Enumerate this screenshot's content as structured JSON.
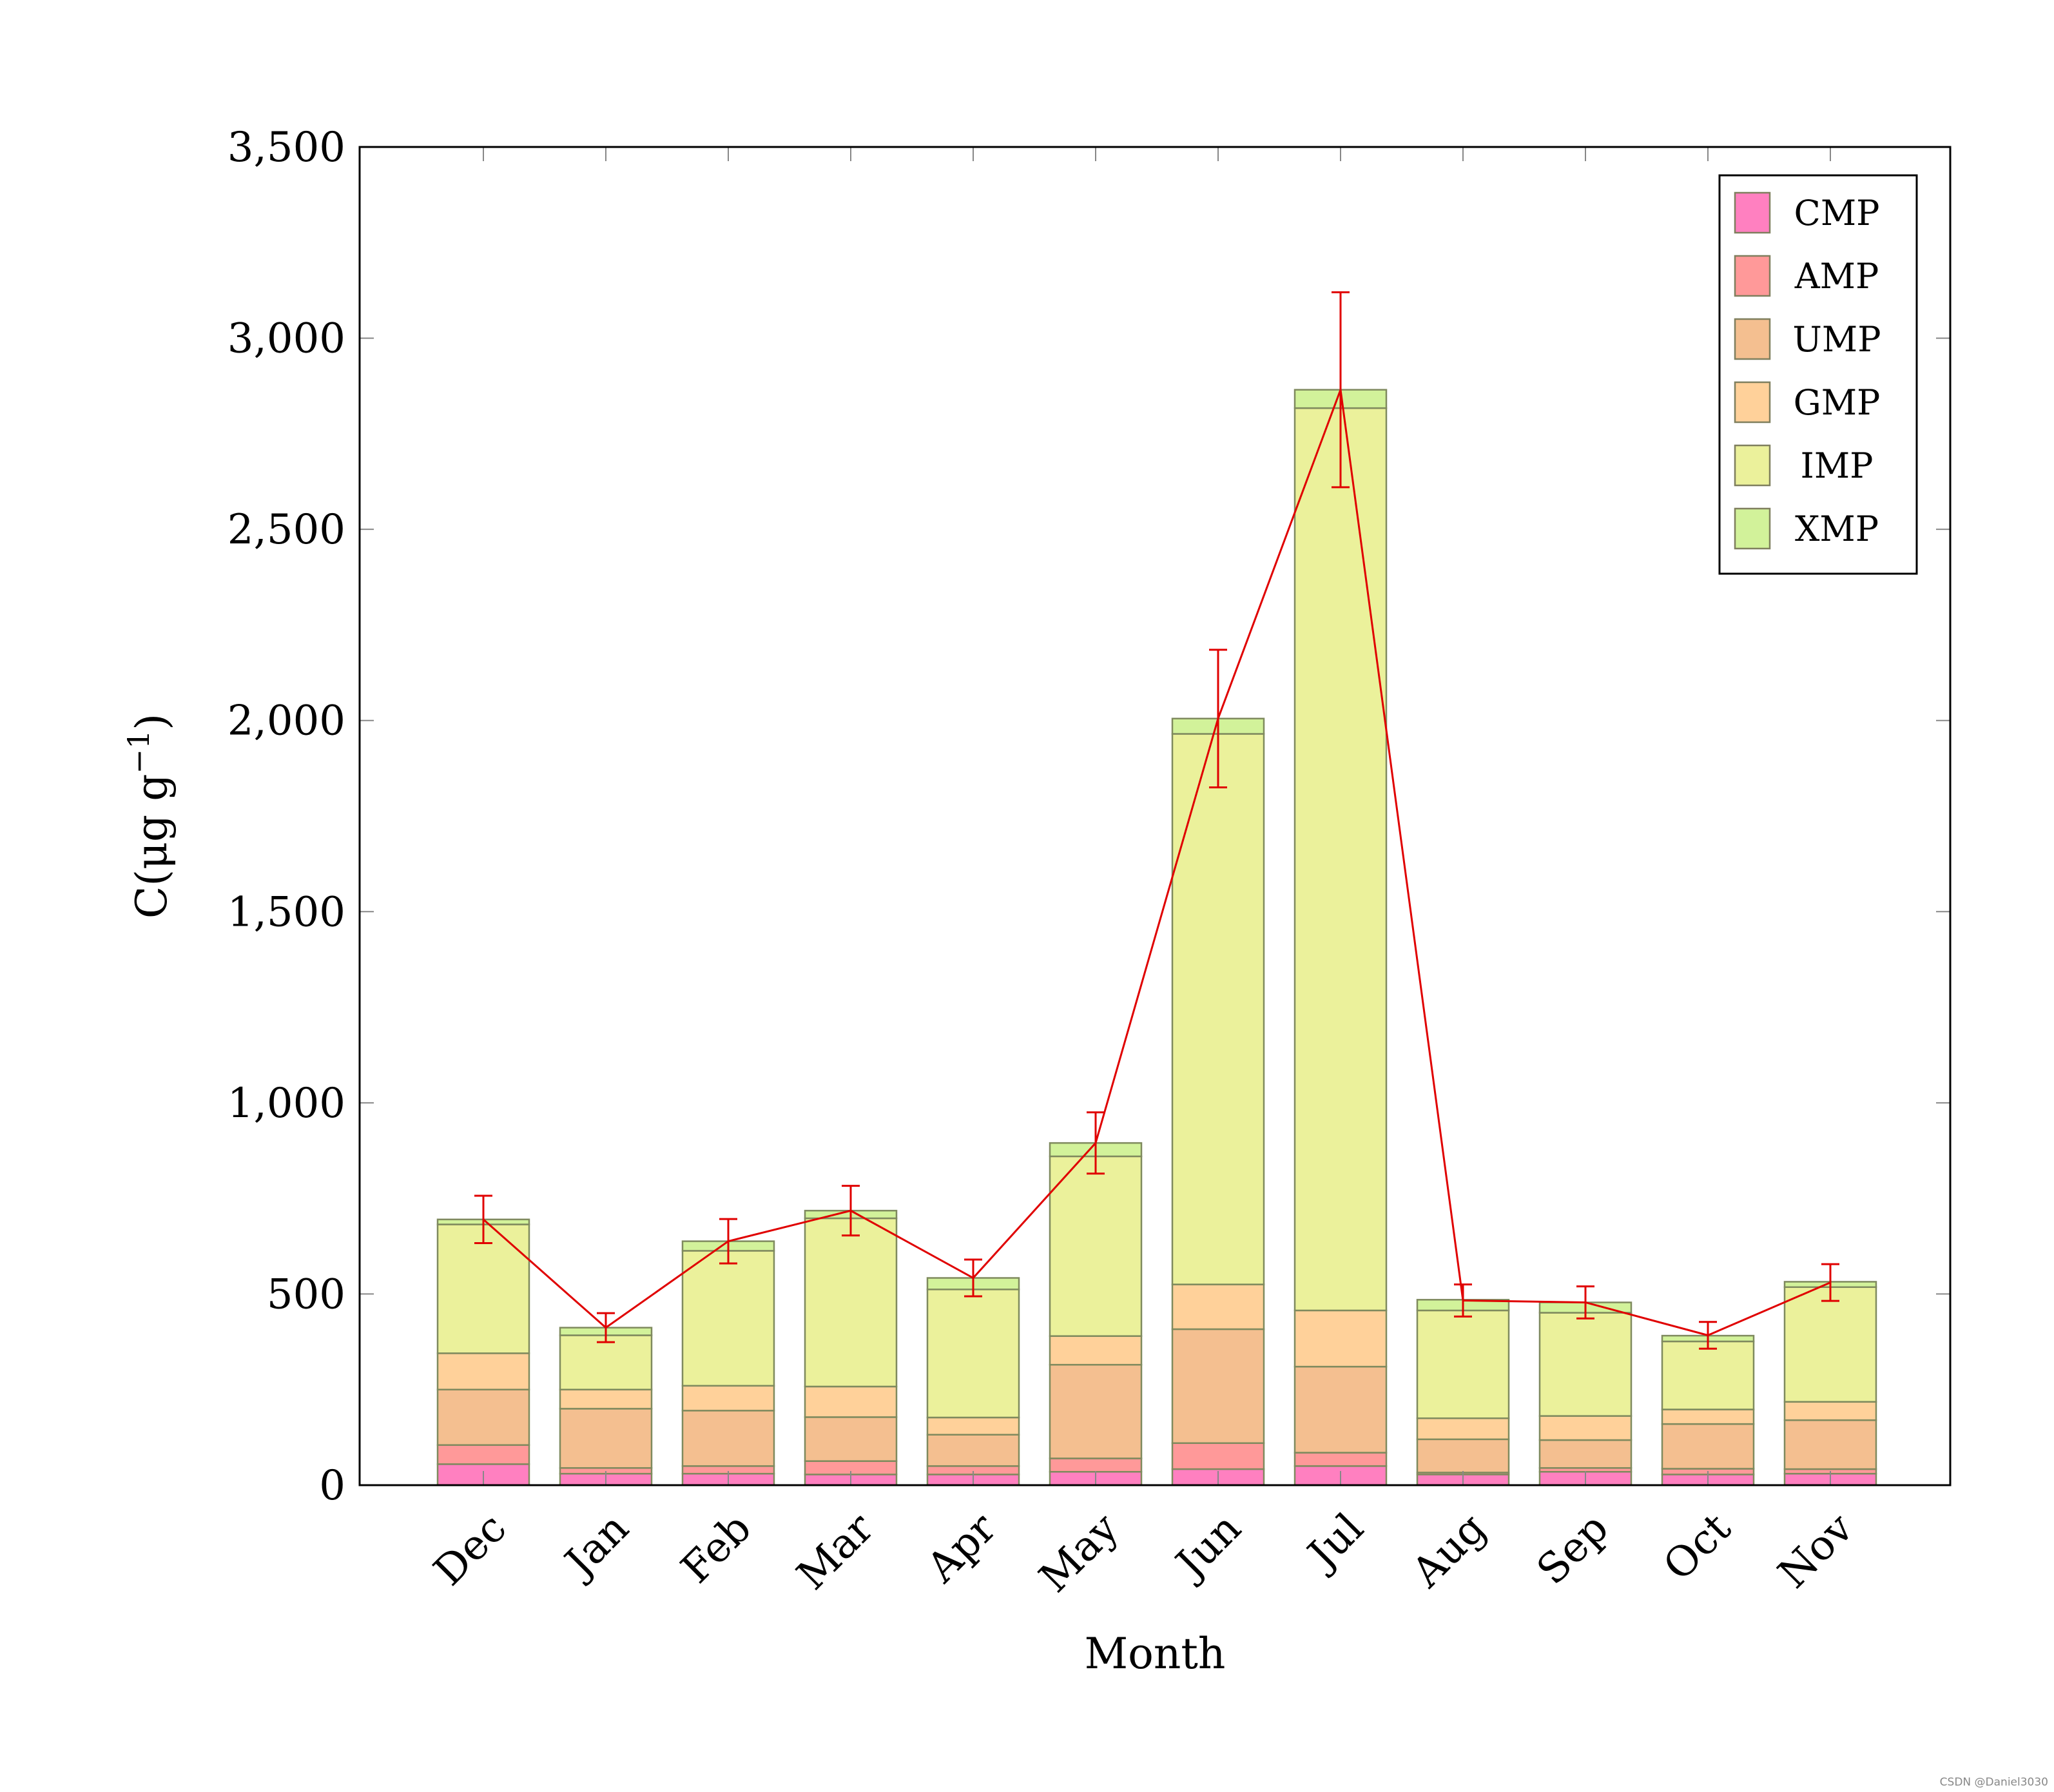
{
  "chart_data": {
    "type": "bar",
    "stacked": true,
    "title": "",
    "xlabel": "Month",
    "ylabel": "C(μg g",
    "ylabel_exponent": "−1",
    "ylabel_close": ")",
    "ylim": [
      0,
      3500
    ],
    "yticks": [
      0,
      500,
      1000,
      1500,
      2000,
      2500,
      3000,
      3500
    ],
    "ytick_labels": [
      "0",
      "500",
      "1,000",
      "1,500",
      "2,000",
      "2,500",
      "3,000",
      "3,500"
    ],
    "categories": [
      "Dec",
      "Jan",
      "Feb",
      "Mar",
      "Apr",
      "May",
      "Jun",
      "Jul",
      "Aug",
      "Sep",
      "Oct",
      "Nov"
    ],
    "legend_position": "top-right",
    "series": [
      {
        "name": "CMP",
        "color": "#ff80c0",
        "values": [
          55,
          30,
          30,
          28,
          28,
          35,
          42,
          50,
          28,
          35,
          28,
          30
        ]
      },
      {
        "name": "AMP",
        "color": "#ff9999",
        "values": [
          50,
          15,
          20,
          35,
          22,
          35,
          68,
          35,
          5,
          10,
          15,
          12
        ]
      },
      {
        "name": "UMP",
        "color": "#f4bf90",
        "values": [
          145,
          155,
          145,
          115,
          82,
          245,
          298,
          225,
          87,
          73,
          117,
          128
        ]
      },
      {
        "name": "GMP",
        "color": "#ffd19a",
        "values": [
          95,
          50,
          65,
          80,
          45,
          75,
          117,
          147,
          55,
          63,
          38,
          48
        ]
      },
      {
        "name": "IMP",
        "color": "#ebf19b",
        "values": [
          337,
          142,
          353,
          440,
          335,
          470,
          1440,
          2360,
          282,
          270,
          178,
          300
        ]
      },
      {
        "name": "XMP",
        "color": "#d2f29a",
        "values": [
          13,
          20,
          25,
          20,
          30,
          35,
          40,
          48,
          28,
          27,
          15,
          14
        ]
      }
    ],
    "line": {
      "color": "#e00000",
      "values": [
        695,
        412,
        638,
        718,
        542,
        895,
        2005,
        2865,
        483,
        478,
        392,
        530
      ],
      "errors": [
        62,
        38,
        58,
        65,
        48,
        80,
        180,
        255,
        42,
        42,
        35,
        48
      ]
    },
    "watermark": "CSDN @Daniel3030"
  }
}
